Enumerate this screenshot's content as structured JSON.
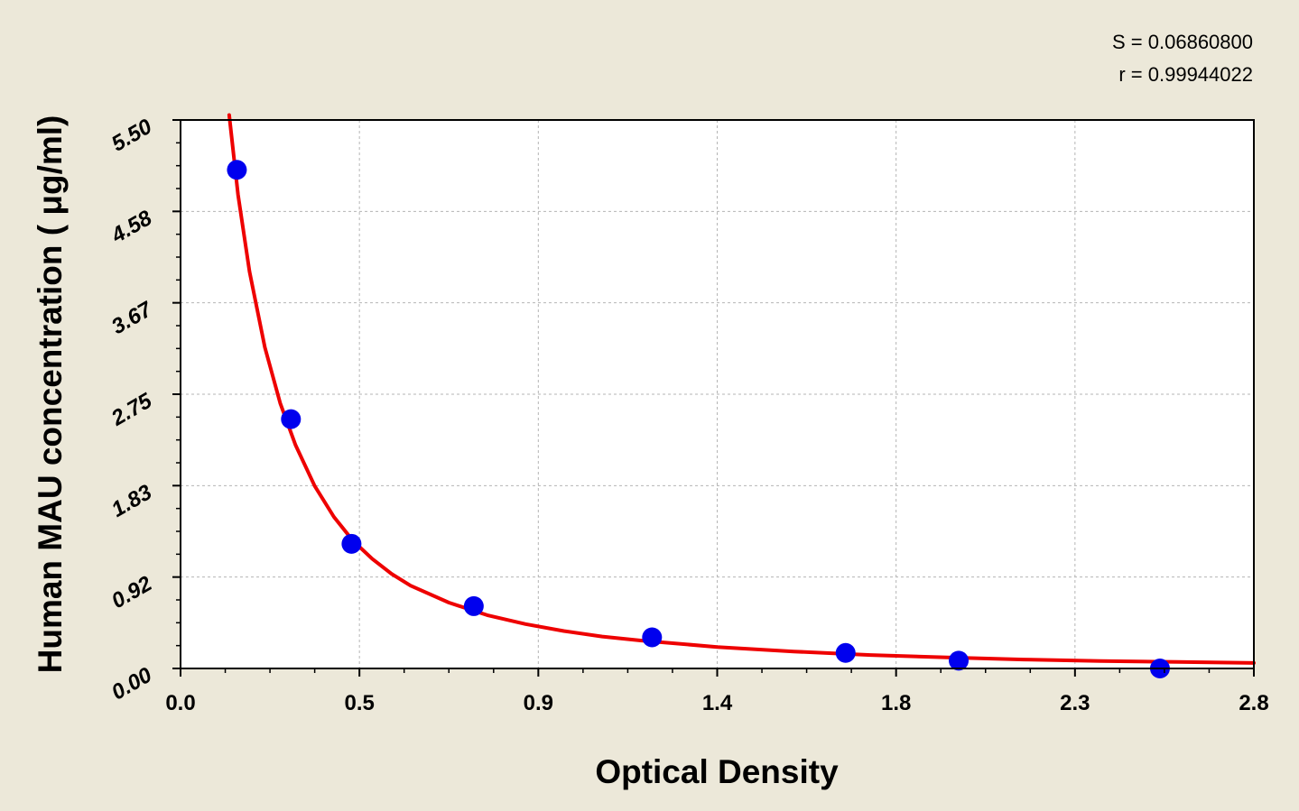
{
  "chart_data": {
    "type": "scatter",
    "xlabel": "Optical Density",
    "ylabel": "Human MAU concentration ( μg/ml)",
    "xlim": [
      0.0,
      2.8
    ],
    "ylim": [
      0.0,
      5.5
    ],
    "x_ticks": [
      "0.0",
      "0.5",
      "0.9",
      "1.4",
      "1.8",
      "2.3",
      "2.8"
    ],
    "y_ticks": [
      "0.00",
      "0.92",
      "1.83",
      "2.75",
      "3.67",
      "4.58",
      "5.50"
    ],
    "grid": true,
    "stats": [
      "S = 0.06860800",
      "r = 0.99944022"
    ],
    "points": {
      "x": [
        0.147,
        0.288,
        0.446,
        0.765,
        1.23,
        1.735,
        2.03,
        2.555
      ],
      "y": [
        5.0,
        2.5,
        1.25,
        0.625,
        0.312,
        0.156,
        0.078,
        0.0
      ]
    },
    "fit_curve": {
      "x": [
        0.127,
        0.15,
        0.18,
        0.22,
        0.26,
        0.3,
        0.35,
        0.4,
        0.45,
        0.5,
        0.55,
        0.6,
        0.7,
        0.8,
        0.9,
        1.0,
        1.1,
        1.2,
        1.4,
        1.6,
        1.8,
        2.0,
        2.2,
        2.4,
        2.6,
        2.8
      ],
      "y": [
        5.55,
        4.75,
        3.98,
        3.22,
        2.66,
        2.24,
        1.83,
        1.52,
        1.28,
        1.1,
        0.95,
        0.83,
        0.66,
        0.535,
        0.445,
        0.375,
        0.32,
        0.28,
        0.215,
        0.17,
        0.135,
        0.11,
        0.09,
        0.075,
        0.065,
        0.055
      ]
    },
    "colors": {
      "points": "#0000ee",
      "fit_line": "#ee0000",
      "grid": "#b5b5b5",
      "plot_bg": "#ffffff",
      "page_bg": "#ece8d9"
    }
  }
}
